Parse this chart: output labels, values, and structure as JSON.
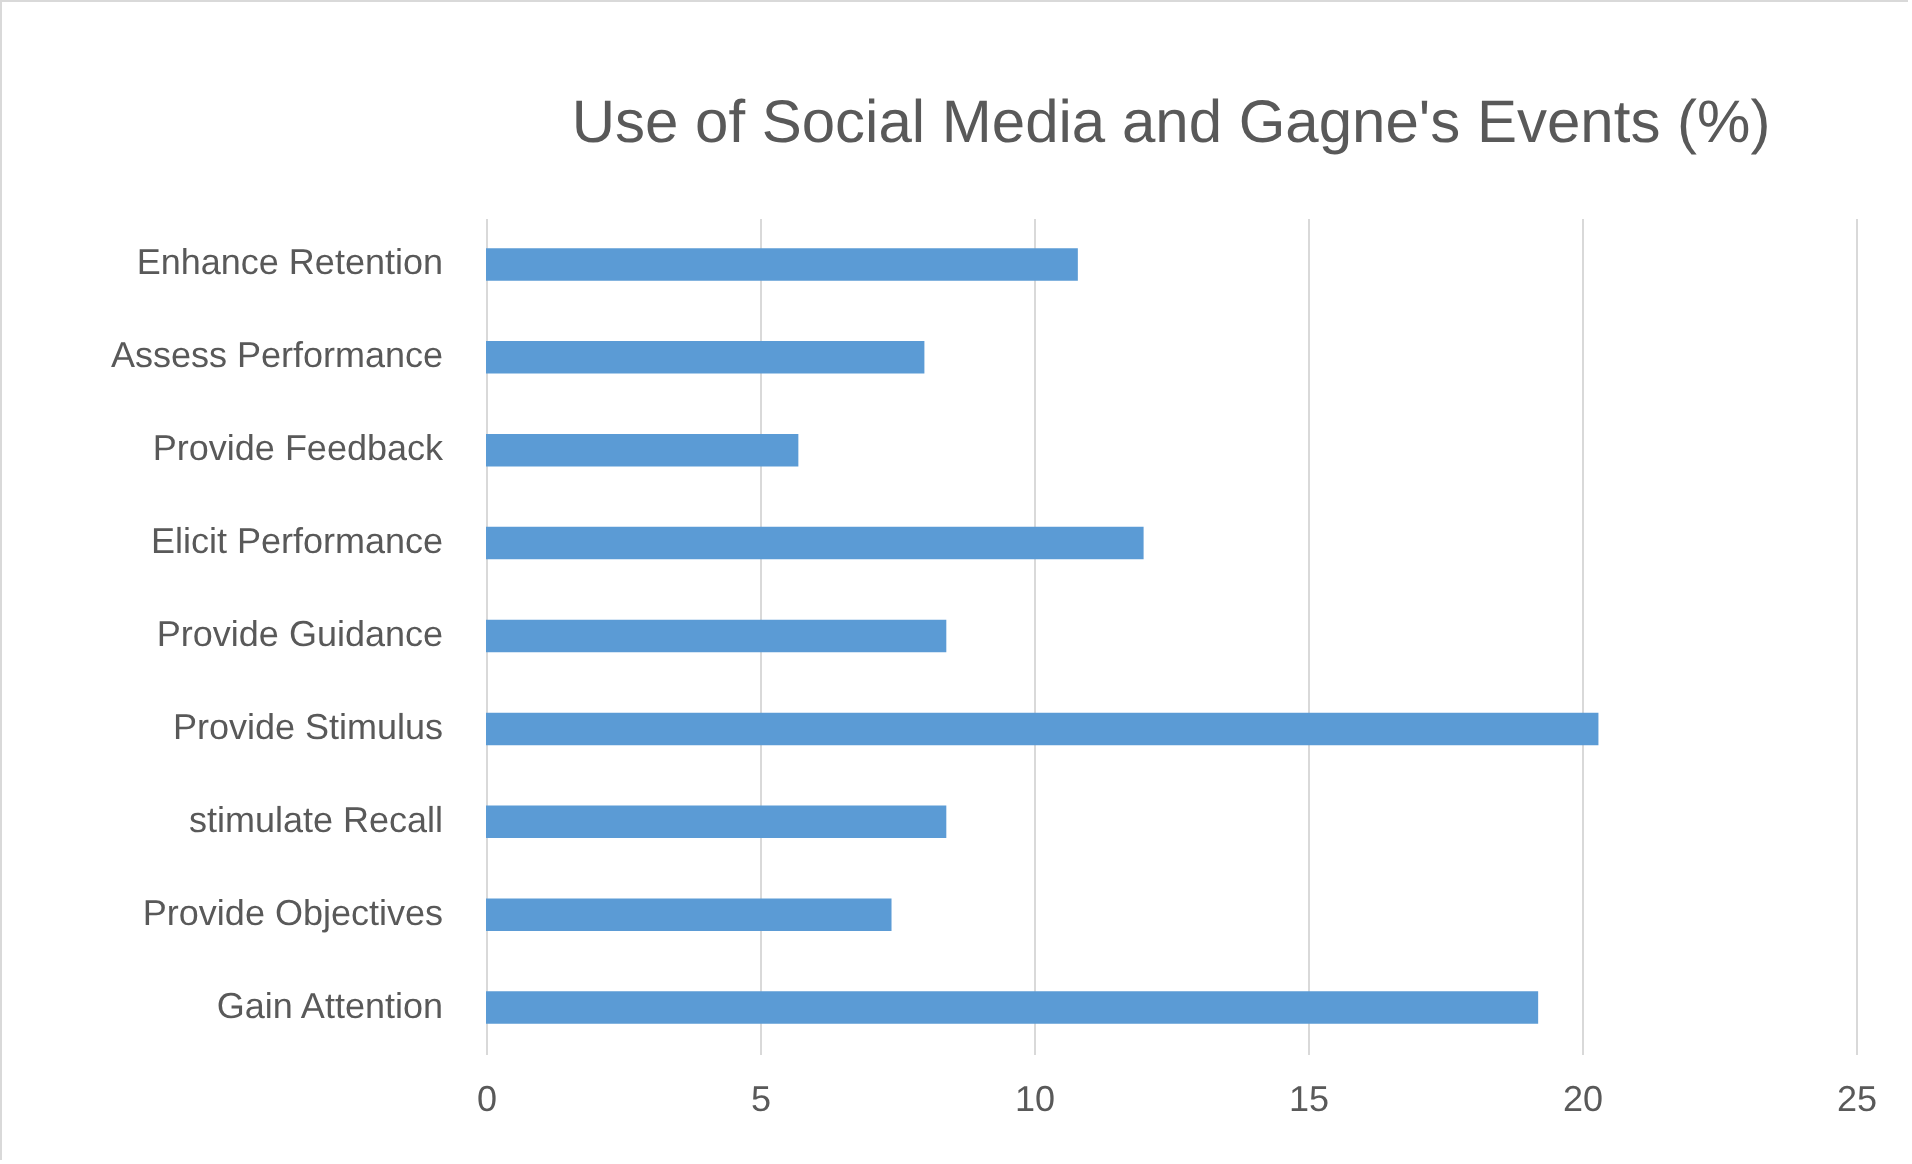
{
  "chart_data": {
    "type": "bar",
    "orientation": "horizontal",
    "title": "Use of Social Media and Gagne's Events (%)",
    "categories": [
      "Enhance Retention",
      "Assess Performance",
      "Provide Feedback",
      "Elicit Performance",
      "Provide Guidance",
      "Provide Stimulus",
      "stimulate Recall",
      "Provide Objectives",
      "Gain Attention"
    ],
    "values": [
      10.8,
      8.0,
      5.7,
      12.0,
      8.4,
      20.3,
      8.4,
      7.4,
      19.2
    ],
    "color": "#5b9bd5",
    "xlim": [
      0,
      25
    ],
    "xticks": [
      0,
      5,
      10,
      15,
      20,
      25
    ],
    "grid": "x"
  }
}
